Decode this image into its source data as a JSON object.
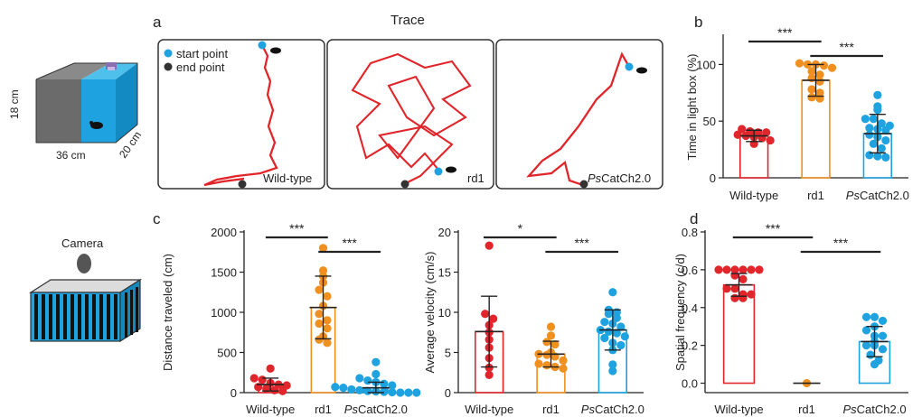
{
  "colors": {
    "wild_type": "#e0262b",
    "rd1": "#ef9020",
    "pscatch": "#1ea3e0",
    "box_gray": "#6d6d6d",
    "box_blue": "#1ea3e0"
  },
  "setup": {
    "light_box": {
      "height_label": "18 cm",
      "length_label": "36 cm",
      "width_label": "20 cm"
    },
    "camera_label": "Camera"
  },
  "panels": {
    "a": {
      "letter": "a",
      "title": "Trace",
      "legend": {
        "start": "start point",
        "end": "end  point"
      },
      "labels": [
        "Wild-type",
        "rd1",
        "CatCh2.0"
      ],
      "italic_prefix": "Ps"
    },
    "b": {
      "letter": "b"
    },
    "c": {
      "letter": "c"
    },
    "d": {
      "letter": "d"
    }
  },
  "chart_data": [
    {
      "id": "b",
      "type": "bar",
      "categories": [
        "Wild-type",
        "rd1",
        "CatCh2.0"
      ],
      "category_italic_prefix": [
        "",
        "",
        "Ps"
      ],
      "ylabel": "Time in light box  (%)",
      "ylim": [
        0,
        125
      ],
      "yticks": [
        0,
        50,
        100
      ],
      "means": [
        37,
        86,
        39
      ],
      "sd": [
        5,
        14,
        17
      ],
      "points": [
        [
          43,
          41,
          40,
          40,
          38,
          37,
          36,
          35,
          33,
          30
        ],
        [
          101,
          100,
          100,
          99,
          97,
          94,
          91,
          88,
          85,
          78,
          75,
          71,
          70
        ],
        [
          73,
          63,
          60,
          52,
          52,
          48,
          46,
          44,
          43,
          42,
          38,
          36,
          33,
          30,
          26,
          20,
          19,
          18
        ]
      ],
      "significance": [
        {
          "from": 0,
          "to": 1,
          "label": "***"
        },
        {
          "from": 1,
          "to": 2,
          "label": "***"
        }
      ]
    },
    {
      "id": "c1",
      "type": "bar",
      "categories": [
        "Wild-type",
        "rd1",
        "CatCh2.0"
      ],
      "category_italic_prefix": [
        "",
        "",
        "Ps"
      ],
      "ylabel": "Distance traveled  (cm)",
      "ylim": [
        0,
        2000
      ],
      "yticks": [
        0,
        500,
        1000,
        1500,
        2000
      ],
      "means": [
        100,
        1060,
        60
      ],
      "sd": [
        80,
        390,
        70
      ],
      "points": [
        [
          300,
          180,
          160,
          120,
          100,
          90,
          70,
          50,
          30,
          20
        ],
        [
          1800,
          1520,
          1450,
          1370,
          1280,
          1200,
          1080,
          980,
          900,
          860,
          800,
          700,
          660,
          620
        ],
        [
          380,
          230,
          180,
          150,
          130,
          110,
          90,
          70,
          60,
          40,
          30,
          20,
          15,
          10,
          5,
          0,
          0,
          0
        ]
      ],
      "significance": [
        {
          "from": 0,
          "to": 1,
          "label": "***"
        },
        {
          "from": 1,
          "to": 2,
          "label": "***"
        }
      ]
    },
    {
      "id": "c2",
      "type": "bar",
      "categories": [
        "Wild-type",
        "rd1",
        "CatCh2.0"
      ],
      "category_italic_prefix": [
        "",
        "",
        "Ps"
      ],
      "ylabel": "Average velocity  (cm/s)",
      "ylim": [
        0,
        20
      ],
      "yticks": [
        0,
        5,
        10,
        15,
        20
      ],
      "means": [
        7.6,
        4.8,
        7.8
      ],
      "sd": [
        4.4,
        1.6,
        2.5
      ],
      "points": [
        [
          18.3,
          9.8,
          9.2,
          8.4,
          7.5,
          6.6,
          5.6,
          4.3,
          3.1,
          2.2
        ],
        [
          8.2,
          7.1,
          6.3,
          6.0,
          5.0,
          4.8,
          4.7,
          4.5,
          4.0,
          3.6,
          3.4,
          3.2,
          3.0
        ],
        [
          12.5,
          10.3,
          10.0,
          9.8,
          9.3,
          8.8,
          8.6,
          8.2,
          7.8,
          7.6,
          7.4,
          7.0,
          6.8,
          6.2,
          5.9,
          5.3,
          3.5,
          2.7
        ]
      ],
      "significance": [
        {
          "from": 0,
          "to": 1,
          "label": "*"
        },
        {
          "from": 1,
          "to": 2,
          "label": "***"
        }
      ]
    },
    {
      "id": "d",
      "type": "bar",
      "categories": [
        "Wild-type",
        "rd1",
        "CatCh2.0"
      ],
      "category_italic_prefix": [
        "",
        "",
        "Ps"
      ],
      "ylabel": "Spatial frequency  (c/d)",
      "ylim": [
        -0.05,
        0.8
      ],
      "yticks": [
        0.0,
        0.2,
        0.4,
        0.6,
        0.8
      ],
      "means": [
        0.52,
        0.0,
        0.22
      ],
      "sd": [
        0.06,
        0.0,
        0.08
      ],
      "points": [
        [
          0.6,
          0.6,
          0.6,
          0.6,
          0.6,
          0.6,
          0.57,
          0.55,
          0.5,
          0.5,
          0.47,
          0.47,
          0.45,
          0.45
        ],
        [
          0.0
        ],
        [
          0.35,
          0.35,
          0.33,
          0.3,
          0.28,
          0.25,
          0.25,
          0.22,
          0.2,
          0.2,
          0.18,
          0.15,
          0.12,
          0.1
        ]
      ],
      "significance": [
        {
          "from": 0,
          "to": 1,
          "label": "***"
        },
        {
          "from": 1,
          "to": 2,
          "label": "***"
        }
      ]
    }
  ]
}
